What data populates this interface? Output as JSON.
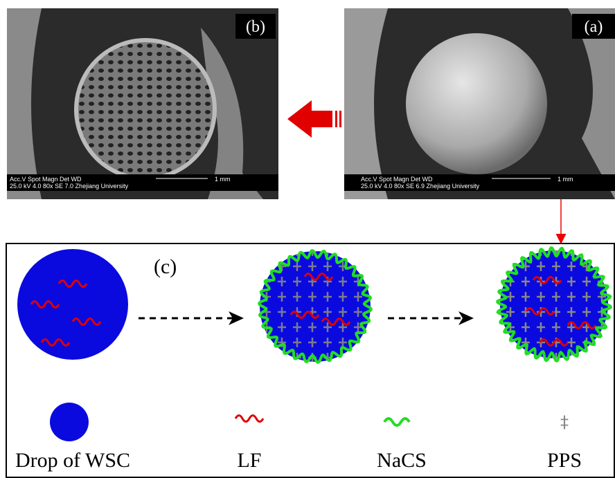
{
  "panels": [
    {
      "label": "(b)",
      "info_header": "Acc.V   Spot Magn    Det  WD",
      "info_values": "25.0 kV 4.0   80x      SE   7.0   Zhejiang University",
      "scale": "1 mm"
    },
    {
      "label": "(a)",
      "info_header": "Acc.V   Spot Magn    Det  WD",
      "info_values": "25.0 kV 4.0   80x      SE   6.9   Zhejiang University",
      "scale": "1 mm"
    }
  ],
  "scheme": {
    "label": "(c)"
  },
  "legend": [
    {
      "label": "Drop of WSC"
    },
    {
      "label": "LF"
    },
    {
      "label": "NaCS"
    },
    {
      "label": "PPS"
    }
  ]
}
